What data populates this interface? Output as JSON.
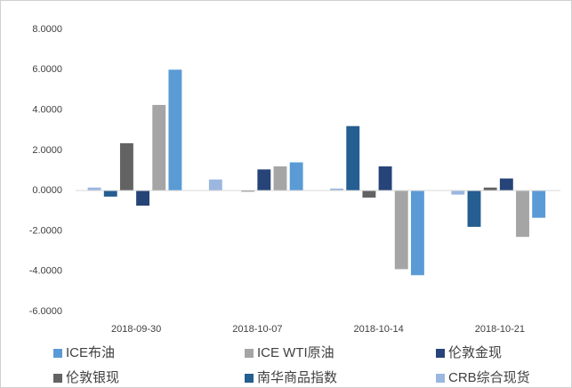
{
  "chart_data": {
    "type": "bar",
    "categories": [
      "2018-09-30",
      "2018-10-07",
      "2018-10-14",
      "2018-10-21"
    ],
    "series": [
      {
        "name": "ICE布油",
        "color": "#5b9bd5",
        "values": [
          6.0,
          1.4,
          -4.2,
          -1.35
        ]
      },
      {
        "name": "ICE WTI原油",
        "color": "#a5a5a5",
        "values": [
          4.25,
          1.2,
          -3.9,
          -2.3
        ]
      },
      {
        "name": "伦敦金现",
        "color": "#264478",
        "values": [
          -0.75,
          1.05,
          1.2,
          0.6
        ]
      },
      {
        "name": "伦敦银现",
        "color": "#636363",
        "values": [
          2.35,
          -0.05,
          -0.35,
          0.15
        ]
      },
      {
        "name": "南华商品指数",
        "color": "#255e91",
        "values": [
          -0.3,
          0,
          3.2,
          -1.8
        ]
      },
      {
        "name": "CRB综合现货",
        "color": "#9bb7e0",
        "values": [
          0.15,
          0.55,
          0.1,
          -0.2
        ]
      }
    ],
    "ylim": [
      -6,
      8
    ],
    "yticks": [
      {
        "value": -6,
        "label": "-6.0000"
      },
      {
        "value": -4,
        "label": "-4.0000"
      },
      {
        "value": -2,
        "label": "-2.0000"
      },
      {
        "value": 0,
        "label": "0.0000"
      },
      {
        "value": 2,
        "label": "2.0000"
      },
      {
        "value": 4,
        "label": "4.0000"
      },
      {
        "value": 6,
        "label": "6.0000"
      },
      {
        "value": 8,
        "label": "8.0000"
      }
    ],
    "grid": false,
    "legend": "bottom"
  }
}
